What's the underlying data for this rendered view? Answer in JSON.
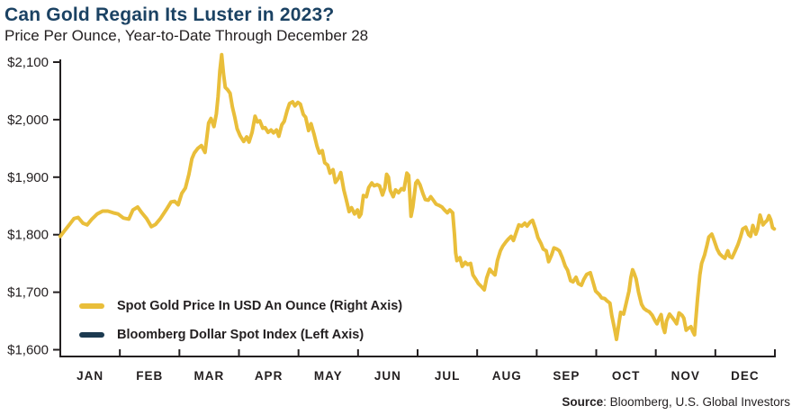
{
  "source": {
    "bold": "Source",
    "rest": ": Bloomberg, U.S. Global Investors"
  },
  "chart_data": {
    "type": "line",
    "title": "Can Gold Regain Its Luster in 2023?",
    "subtitle": "Price Per Ounce, Year-to-Date Through December 28",
    "grid": false,
    "legend_position": "inside-bottom-left",
    "axis_color": "#231F20",
    "x_tick_labels": [
      "JAN",
      "FEB",
      "MAR",
      "APR",
      "MAY",
      "JUN",
      "JUL",
      "AUG",
      "SEP",
      "OCT",
      "NOV",
      "DEC"
    ],
    "y_ticks": [
      {
        "label": "$2,100",
        "value": 2100
      },
      {
        "label": "$2,000",
        "value": 2000
      },
      {
        "label": "$1,900",
        "value": 1900
      },
      {
        "label": "$1,800",
        "value": 1800
      },
      {
        "label": "$1,700",
        "value": 1700
      },
      {
        "label": "$1,600",
        "value": 1600
      }
    ],
    "ylim": [
      1600,
      2100
    ],
    "x_months": 12,
    "series": [
      {
        "name": "Spot Gold Price In USD An Ounce (Right Axis)",
        "color": "#E9BE3A",
        "points": [
          [
            0,
            1797
          ],
          [
            0.08,
            1808
          ],
          [
            0.15,
            1817
          ],
          [
            0.23,
            1828
          ],
          [
            0.3,
            1830
          ],
          [
            0.38,
            1820
          ],
          [
            0.45,
            1817
          ],
          [
            0.53,
            1827
          ],
          [
            0.62,
            1836
          ],
          [
            0.71,
            1841
          ],
          [
            0.8,
            1841
          ],
          [
            0.89,
            1838
          ],
          [
            0.97,
            1836
          ],
          [
            1.06,
            1829
          ],
          [
            1.15,
            1827
          ],
          [
            1.22,
            1843
          ],
          [
            1.3,
            1848
          ],
          [
            1.37,
            1838
          ],
          [
            1.45,
            1828
          ],
          [
            1.53,
            1814
          ],
          [
            1.6,
            1818
          ],
          [
            1.68,
            1828
          ],
          [
            1.77,
            1842
          ],
          [
            1.86,
            1857
          ],
          [
            1.92,
            1858
          ],
          [
            1.98,
            1852
          ],
          [
            2.04,
            1872
          ],
          [
            2.1,
            1881
          ],
          [
            2.16,
            1905
          ],
          [
            2.21,
            1932
          ],
          [
            2.25,
            1942
          ],
          [
            2.31,
            1950
          ],
          [
            2.37,
            1955
          ],
          [
            2.43,
            1943
          ],
          [
            2.49,
            1994
          ],
          [
            2.53,
            2002
          ],
          [
            2.58,
            1988
          ],
          [
            2.62,
            2010
          ],
          [
            2.65,
            2040
          ],
          [
            2.68,
            2085
          ],
          [
            2.71,
            2113
          ],
          [
            2.74,
            2080
          ],
          [
            2.77,
            2056
          ],
          [
            2.81,
            2052
          ],
          [
            2.85,
            2046
          ],
          [
            2.89,
            2022
          ],
          [
            2.93,
            2004
          ],
          [
            2.97,
            1984
          ],
          [
            3.02,
            1972
          ],
          [
            3.08,
            1962
          ],
          [
            3.13,
            1970
          ],
          [
            3.17,
            1961
          ],
          [
            3.22,
            1978
          ],
          [
            3.27,
            2006
          ],
          [
            3.31,
            1996
          ],
          [
            3.35,
            1998
          ],
          [
            3.4,
            1985
          ],
          [
            3.44,
            1986
          ],
          [
            3.49,
            1978
          ],
          [
            3.54,
            1982
          ],
          [
            3.58,
            1977
          ],
          [
            3.63,
            1982
          ],
          [
            3.67,
            1971
          ],
          [
            3.72,
            1991
          ],
          [
            3.76,
            1997
          ],
          [
            3.81,
            2016
          ],
          [
            3.85,
            2028
          ],
          [
            3.9,
            2031
          ],
          [
            3.94,
            2024
          ],
          [
            3.99,
            2030
          ],
          [
            4.03,
            2027
          ],
          [
            4.08,
            2009
          ],
          [
            4.12,
            2004
          ],
          [
            4.17,
            1981
          ],
          [
            4.21,
            1993
          ],
          [
            4.26,
            1975
          ],
          [
            4.31,
            1954
          ],
          [
            4.35,
            1942
          ],
          [
            4.4,
            1946
          ],
          [
            4.44,
            1925
          ],
          [
            4.49,
            1921
          ],
          [
            4.53,
            1907
          ],
          [
            4.58,
            1913
          ],
          [
            4.62,
            1891
          ],
          [
            4.67,
            1898
          ],
          [
            4.71,
            1908
          ],
          [
            4.76,
            1878
          ],
          [
            4.8,
            1862
          ],
          [
            4.85,
            1840
          ],
          [
            4.89,
            1847
          ],
          [
            4.94,
            1836
          ],
          [
            4.99,
            1843
          ],
          [
            5.02,
            1831
          ],
          [
            5.05,
            1836
          ],
          [
            5.09,
            1868
          ],
          [
            5.14,
            1866
          ],
          [
            5.18,
            1882
          ],
          [
            5.23,
            1890
          ],
          [
            5.27,
            1885
          ],
          [
            5.32,
            1887
          ],
          [
            5.36,
            1885
          ],
          [
            5.41,
            1869
          ],
          [
            5.45,
            1881
          ],
          [
            5.48,
            1905
          ],
          [
            5.51,
            1900
          ],
          [
            5.54,
            1877
          ],
          [
            5.59,
            1866
          ],
          [
            5.63,
            1878
          ],
          [
            5.68,
            1873
          ],
          [
            5.73,
            1880
          ],
          [
            5.77,
            1878
          ],
          [
            5.82,
            1907
          ],
          [
            5.85,
            1903
          ],
          [
            5.88,
            1848
          ],
          [
            5.89,
            1832
          ],
          [
            5.92,
            1848
          ],
          [
            5.97,
            1890
          ],
          [
            6,
            1894
          ],
          [
            6.04,
            1887
          ],
          [
            6.09,
            1871
          ],
          [
            6.13,
            1861
          ],
          [
            6.18,
            1860
          ],
          [
            6.22,
            1866
          ],
          [
            6.27,
            1859
          ],
          [
            6.31,
            1853
          ],
          [
            6.36,
            1851
          ],
          [
            6.41,
            1848
          ],
          [
            6.45,
            1843
          ],
          [
            6.5,
            1838
          ],
          [
            6.54,
            1843
          ],
          [
            6.59,
            1838
          ],
          [
            6.62,
            1800
          ],
          [
            6.64,
            1768
          ],
          [
            6.66,
            1755
          ],
          [
            6.71,
            1760
          ],
          [
            6.75,
            1745
          ],
          [
            6.8,
            1752
          ],
          [
            6.84,
            1748
          ],
          [
            6.89,
            1750
          ],
          [
            6.93,
            1730
          ],
          [
            6.98,
            1722
          ],
          [
            7.02,
            1715
          ],
          [
            7.07,
            1710
          ],
          [
            7.12,
            1704
          ],
          [
            7.16,
            1725
          ],
          [
            7.21,
            1740
          ],
          [
            7.25,
            1735
          ],
          [
            7.3,
            1730
          ],
          [
            7.34,
            1755
          ],
          [
            7.39,
            1772
          ],
          [
            7.43,
            1780
          ],
          [
            7.48,
            1787
          ],
          [
            7.52,
            1792
          ],
          [
            7.57,
            1797
          ],
          [
            7.61,
            1790
          ],
          [
            7.66,
            1805
          ],
          [
            7.7,
            1817
          ],
          [
            7.75,
            1815
          ],
          [
            7.8,
            1820
          ],
          [
            7.84,
            1815
          ],
          [
            7.89,
            1822
          ],
          [
            7.93,
            1825
          ],
          [
            7.98,
            1810
          ],
          [
            8.02,
            1795
          ],
          [
            8.07,
            1785
          ],
          [
            8.11,
            1775
          ],
          [
            8.16,
            1772
          ],
          [
            8.2,
            1753
          ],
          [
            8.25,
            1765
          ],
          [
            8.29,
            1777
          ],
          [
            8.34,
            1775
          ],
          [
            8.38,
            1772
          ],
          [
            8.43,
            1760
          ],
          [
            8.48,
            1745
          ],
          [
            8.52,
            1738
          ],
          [
            8.57,
            1720
          ],
          [
            8.61,
            1718
          ],
          [
            8.66,
            1726
          ],
          [
            8.7,
            1715
          ],
          [
            8.75,
            1712
          ],
          [
            8.79,
            1722
          ],
          [
            8.84,
            1731
          ],
          [
            8.9,
            1734
          ],
          [
            8.94,
            1720
          ],
          [
            8.99,
            1702
          ],
          [
            9.05,
            1696
          ],
          [
            9.09,
            1690
          ],
          [
            9.14,
            1689
          ],
          [
            9.18,
            1685
          ],
          [
            9.23,
            1681
          ],
          [
            9.26,
            1660
          ],
          [
            9.31,
            1635
          ],
          [
            9.34,
            1618
          ],
          [
            9.38,
            1645
          ],
          [
            9.41,
            1665
          ],
          [
            9.46,
            1662
          ],
          [
            9.5,
            1680
          ],
          [
            9.55,
            1702
          ],
          [
            9.58,
            1725
          ],
          [
            9.61,
            1739
          ],
          [
            9.64,
            1732
          ],
          [
            9.67,
            1723
          ],
          [
            9.71,
            1700
          ],
          [
            9.76,
            1679
          ],
          [
            9.8,
            1672
          ],
          [
            9.85,
            1668
          ],
          [
            9.89,
            1666
          ],
          [
            9.94,
            1660
          ],
          [
            9.99,
            1650
          ],
          [
            10.02,
            1645
          ],
          [
            10.06,
            1655
          ],
          [
            10.09,
            1661
          ],
          [
            10.12,
            1640
          ],
          [
            10.15,
            1630
          ],
          [
            10.18,
            1650
          ],
          [
            10.23,
            1662
          ],
          [
            10.27,
            1657
          ],
          [
            10.32,
            1650
          ],
          [
            10.35,
            1645
          ],
          [
            10.39,
            1664
          ],
          [
            10.44,
            1660
          ],
          [
            10.47,
            1655
          ],
          [
            10.51,
            1634
          ],
          [
            10.54,
            1637
          ],
          [
            10.59,
            1640
          ],
          [
            10.62,
            1632
          ],
          [
            10.65,
            1626
          ],
          [
            10.7,
            1688
          ],
          [
            10.74,
            1730
          ],
          [
            10.77,
            1750
          ],
          [
            10.82,
            1765
          ],
          [
            10.86,
            1782
          ],
          [
            10.89,
            1796
          ],
          [
            10.94,
            1801
          ],
          [
            10.98,
            1790
          ],
          [
            11.03,
            1775
          ],
          [
            11.07,
            1767
          ],
          [
            11.12,
            1762
          ],
          [
            11.16,
            1759
          ],
          [
            11.21,
            1772
          ],
          [
            11.24,
            1762
          ],
          [
            11.28,
            1760
          ],
          [
            11.33,
            1771
          ],
          [
            11.38,
            1783
          ],
          [
            11.42,
            1795
          ],
          [
            11.46,
            1810
          ],
          [
            11.51,
            1813
          ],
          [
            11.56,
            1800
          ],
          [
            11.59,
            1797
          ],
          [
            11.63,
            1816
          ],
          [
            11.68,
            1801
          ],
          [
            11.71,
            1810
          ],
          [
            11.75,
            1834
          ],
          [
            11.8,
            1817
          ],
          [
            11.83,
            1821
          ],
          [
            11.87,
            1825
          ],
          [
            11.9,
            1833
          ],
          [
            11.93,
            1826
          ],
          [
            11.96,
            1812
          ],
          [
            11.99,
            1810
          ]
        ]
      },
      {
        "name": "Bloomberg Dollar Spot Index (Left Axis)",
        "color": "#1C3A50",
        "points": []
      }
    ]
  }
}
